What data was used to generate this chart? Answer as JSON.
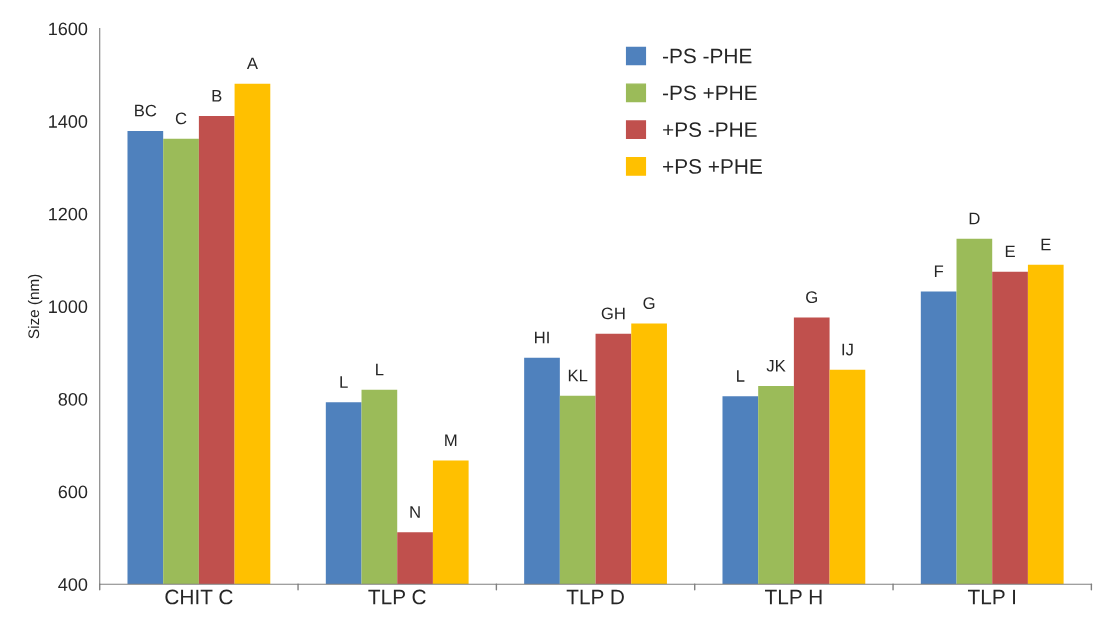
{
  "chart_data": {
    "type": "bar",
    "ylabel": "Size (nm)",
    "categories": [
      "CHIT C",
      "TLP C",
      "TLP D",
      "TLP H",
      "TLP I"
    ],
    "series": [
      {
        "name": "-PS -PHE",
        "color": "#4f81bd",
        "values": [
          1379,
          793,
          889,
          806,
          1032
        ],
        "value_labels": [
          "BC",
          "L",
          "HI",
          "L",
          "F"
        ]
      },
      {
        "name": "-PS +PHE",
        "color": "#9bbb59",
        "values": [
          1362,
          820,
          807,
          828,
          1146
        ],
        "value_labels": [
          "C",
          "L",
          "KL",
          "JK",
          "D"
        ]
      },
      {
        "name": "+PS -PHE",
        "color": "#c0504d",
        "values": [
          1411,
          512,
          941,
          976,
          1075
        ],
        "value_labels": [
          "B",
          "N",
          "GH",
          "G",
          "E"
        ]
      },
      {
        "name": "+PS +PHE",
        "color": "#ffc000",
        "values": [
          1481,
          667,
          963,
          863,
          1090
        ],
        "value_labels": [
          "A",
          "M",
          "G",
          "IJ",
          "E"
        ]
      }
    ],
    "ylim": [
      400,
      1600
    ],
    "yticks": [
      400,
      600,
      800,
      1000,
      1200,
      1400,
      1600
    ],
    "grid": false,
    "legend": "top"
  }
}
